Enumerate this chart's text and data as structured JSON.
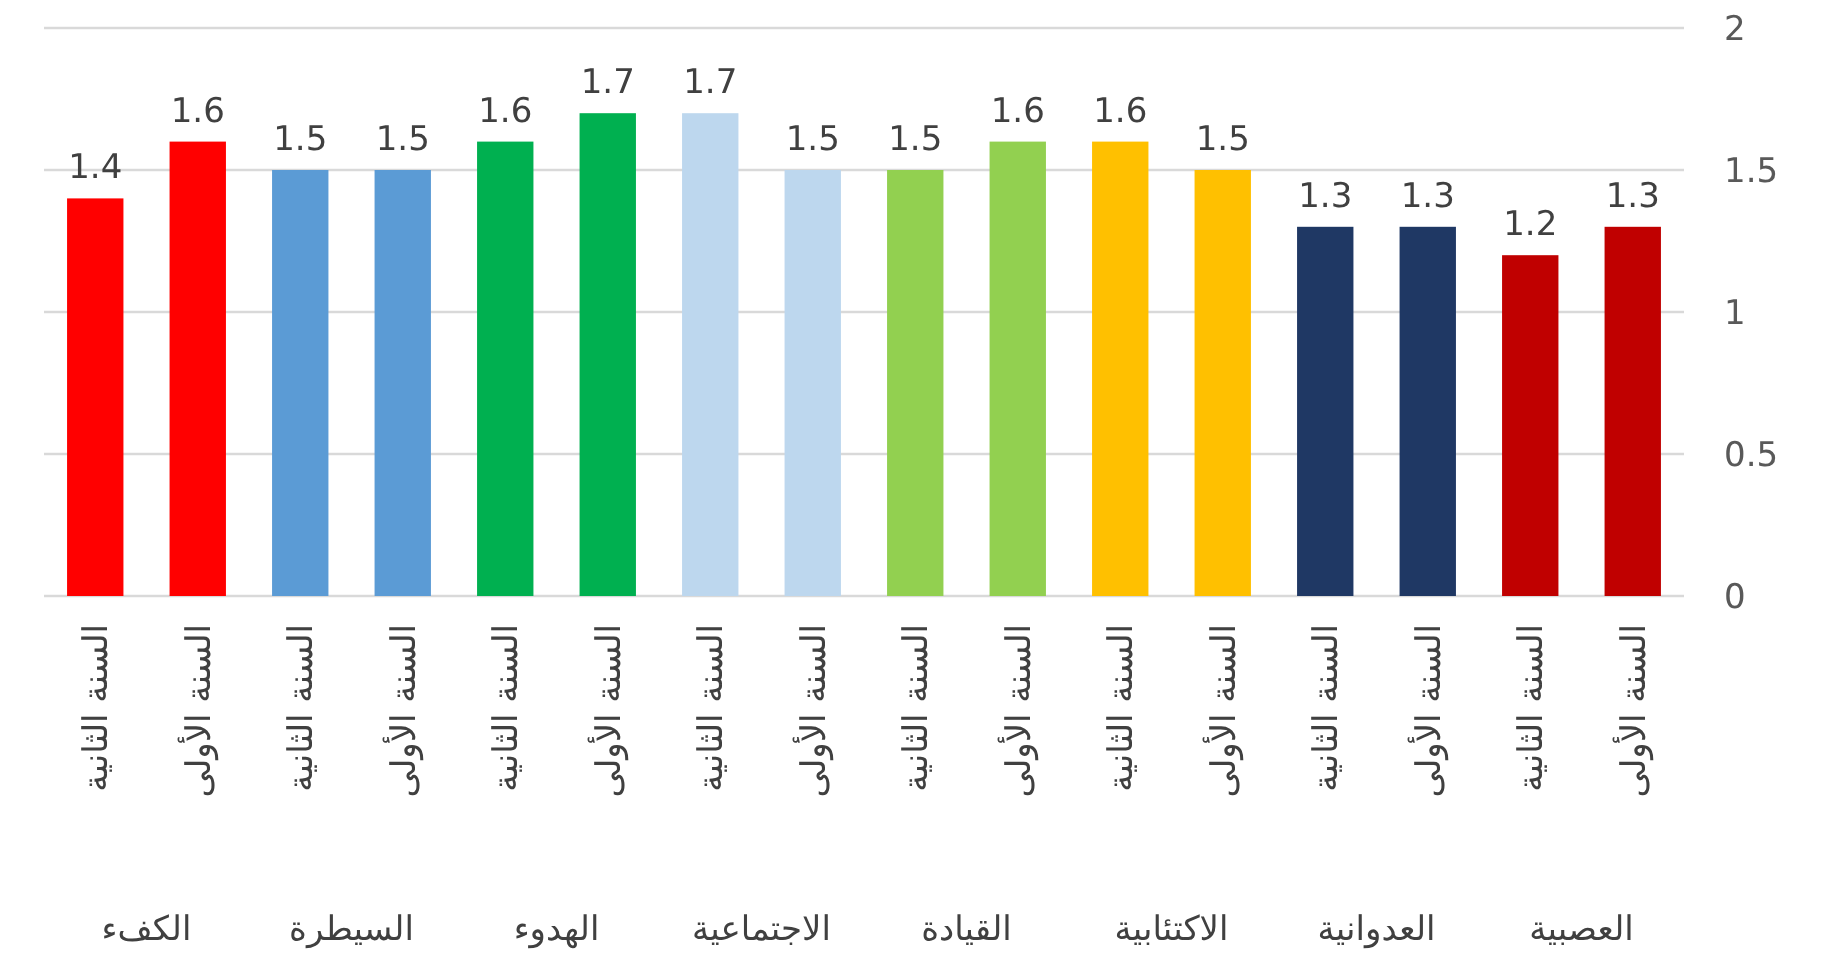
{
  "chart_data": {
    "type": "bar",
    "categories": [
      "السنة الثانية",
      "السنة الأولى",
      "السنة الثانية",
      "السنة الأولى",
      "السنة الثانية",
      "السنة الأولى",
      "السنة الثانية",
      "السنة الأولى",
      "السنة الثانية",
      "السنة الأولى",
      "السنة الثانية",
      "السنة الأولى",
      "السنة الثانية",
      "السنة الأولى",
      "السنة الثانية",
      "السنة الأولى"
    ],
    "values": [
      1.4,
      1.6,
      1.5,
      1.5,
      1.6,
      1.7,
      1.7,
      1.5,
      1.5,
      1.6,
      1.6,
      1.5,
      1.3,
      1.3,
      1.2,
      1.3
    ],
    "colors": [
      "#ff0000",
      "#ff0000",
      "#5b9bd5",
      "#5b9bd5",
      "#00b050",
      "#00b050",
      "#bdd7ee",
      "#bdd7ee",
      "#92d050",
      "#92d050",
      "#ffc000",
      "#ffc000",
      "#1f3864",
      "#1f3864",
      "#c00000",
      "#c00000"
    ],
    "ylim": [
      0,
      2
    ],
    "yticks": [
      0,
      0.5,
      1,
      1.5,
      2
    ],
    "grid": "y",
    "data_labels": true,
    "annotations": [
      "الكفء",
      "السيطرة",
      "الهدوء",
      "الاجتماعية",
      "القيادة",
      "الاكتئابية",
      "العدوانية",
      "العصبية"
    ]
  }
}
